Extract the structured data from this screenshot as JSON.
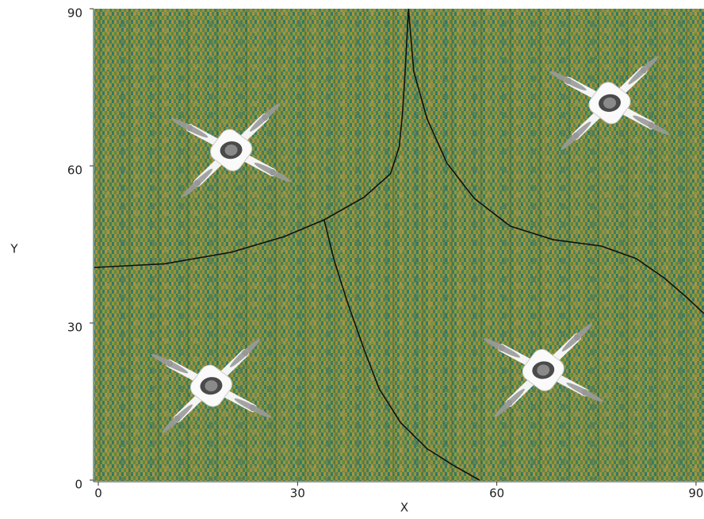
{
  "chart_data": {
    "type": "scatter",
    "x_label": "X",
    "y_label": "Y",
    "xlim": [
      -0.6,
      91.2
    ],
    "ylim": [
      0,
      90
    ],
    "xticks": [
      0,
      30,
      60,
      90
    ],
    "yticks": [
      0,
      30,
      60,
      90
    ],
    "points": {
      "x": [
        20,
        77,
        17,
        67
      ],
      "y": [
        63,
        72,
        18,
        21
      ]
    },
    "boundaries": [
      {
        "color": "#111111",
        "x": [
          -0.6,
          10,
          20,
          28,
          34,
          40,
          44,
          45.3,
          45.8,
          46.2,
          46.7
        ],
        "y": [
          40.6,
          41.3,
          43.5,
          46.5,
          49.7,
          54,
          58.5,
          63.6,
          70,
          78,
          90
        ]
      },
      {
        "color": "#111111",
        "x": [
          34,
          35.5,
          37.5,
          40,
          42.3,
          45.5,
          49.5,
          53.5,
          57.4
        ],
        "y": [
          49.7,
          42,
          34,
          25,
          17.4,
          11,
          6,
          2.8,
          0
        ]
      },
      {
        "color": "#111111",
        "x": [
          46.7,
          47.5,
          49.5,
          52.5,
          56.6,
          62,
          68.5,
          75.7,
          81,
          85.2,
          88.5,
          91.2
        ],
        "y": [
          90,
          78,
          69,
          60.5,
          53.8,
          48.5,
          45.9,
          44.7,
          42.3,
          38.6,
          35,
          31.8
        ]
      }
    ]
  }
}
